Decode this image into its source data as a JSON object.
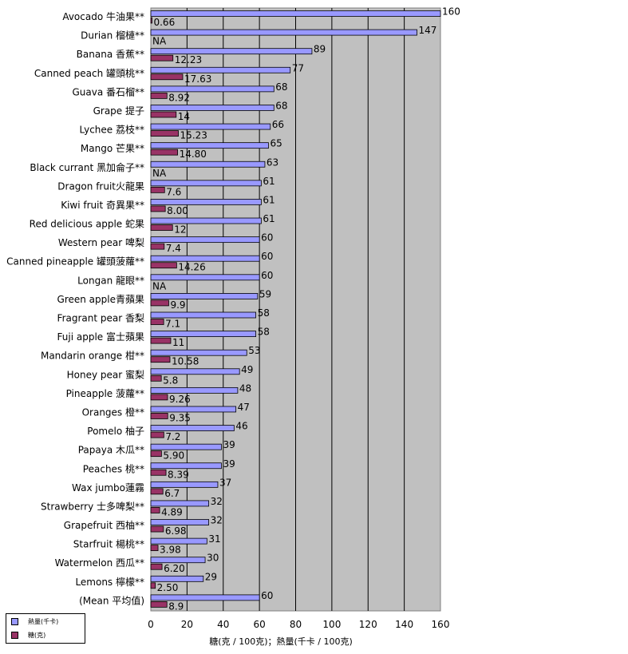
{
  "chart_data": {
    "type": "bar",
    "orientation": "horizontal",
    "title": "",
    "xlabel": "糖(克 / 100克)；熱量(千卡 / 100克)",
    "ylabel": "",
    "xlim": [
      0,
      160
    ],
    "xticks": [
      0,
      20,
      40,
      60,
      80,
      100,
      120,
      140,
      160
    ],
    "grid": true,
    "legend_position": "bottom-left",
    "categories": [
      "Avocado 牛油果**",
      "Durian 榴槤**",
      "Banana 香蕉**",
      "Canned peach 罐頭桃**",
      "Guava 番石榴**",
      "Grape 提子",
      "Lychee 荔枝**",
      "Mango 芒果**",
      "Black currant 黑加侖子**",
      "Dragon fruit火龍果",
      "Kiwi fruit 奇異果**",
      "Red delicious apple 蛇果",
      "Western pear 啤梨",
      "Canned pineapple 罐頭菠蘿**",
      "Longan 龍眼**",
      "Green apple青蘋果",
      "Fragrant pear 香梨",
      "Fuji apple 富士蘋果",
      "Mandarin orange 柑**",
      "Honey pear 蜜梨",
      "Pineapple 菠蘿**",
      "Oranges 橙**",
      "Pomelo 柚子",
      "Papaya 木瓜**",
      "Peaches 桃**",
      "Wax jumbo蓮霧",
      "Strawberry 士多啤梨**",
      "Grapefruit 西柚**",
      "Starfruit 楊桃**",
      "Watermelon 西瓜**",
      "Lemons 檸檬**",
      "(Mean 平均值)"
    ],
    "series": [
      {
        "name": "熱量(千卡)",
        "color": "#9999ff",
        "values": [
          160,
          147,
          89,
          77,
          68,
          68,
          66,
          65,
          63,
          61,
          61,
          61,
          60,
          60,
          60,
          59,
          58,
          58,
          53,
          49,
          48,
          47,
          46,
          39,
          39,
          37,
          32,
          32,
          31,
          30,
          29,
          60
        ],
        "labels": [
          "160",
          "147",
          "89",
          "77",
          "68",
          "68",
          "66",
          "65",
          "63",
          "61",
          "61",
          "61",
          "60",
          "60",
          "60",
          "59",
          "58",
          "58",
          "53",
          "49",
          "48",
          "47",
          "46",
          "39",
          "39",
          "37",
          "32",
          "32",
          "31",
          "30",
          "29",
          "60"
        ]
      },
      {
        "name": "糖(克)",
        "color": "#993366",
        "values": [
          0.66,
          null,
          12.23,
          17.63,
          8.92,
          14,
          15.23,
          14.8,
          null,
          7.6,
          8.0,
          12,
          7.4,
          14.26,
          null,
          9.9,
          7.1,
          11,
          10.58,
          5.8,
          9.26,
          9.35,
          7.2,
          5.9,
          8.39,
          6.7,
          4.89,
          6.98,
          3.98,
          6.2,
          2.5,
          8.9
        ],
        "labels": [
          "0.66",
          "NA",
          "12.23",
          "17.63",
          "8.92",
          "14",
          "15.23",
          "14.80",
          "NA",
          "7.6",
          "8.00",
          "12",
          "7.4",
          "14.26",
          "NA",
          "9.9",
          "7.1",
          "11",
          "10.58",
          "5.8",
          "9.26",
          "9.35",
          "7.2",
          "5.90",
          "8.39",
          "6.7",
          "4.89",
          "6.98",
          "3.98",
          "6.20",
          "2.50",
          "8.9"
        ]
      }
    ]
  },
  "legend": {
    "items": [
      {
        "label": "熱量(千卡)",
        "color": "#9999ff"
      },
      {
        "label": "糖(克)",
        "color": "#993366"
      }
    ]
  }
}
